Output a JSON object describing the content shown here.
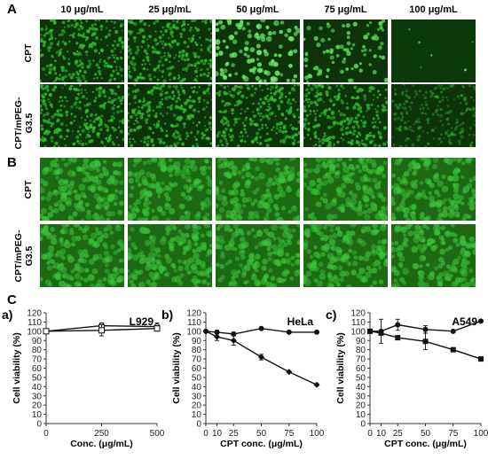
{
  "panels": {
    "A": "A",
    "B": "B",
    "C": "C"
  },
  "columns": [
    "10 μg/mL",
    "25 μg/mL",
    "50 μg/mL",
    "75 μg/mL",
    "100 μg/mL"
  ],
  "rows": {
    "cpt": "CPT",
    "cpt_mpeg": "CPT/mPEG-\nG3.5"
  },
  "micrograph_color": "#2fbf2f",
  "chart_data": [
    {
      "type": "line",
      "panel": "a)",
      "title": "L929",
      "xlabel": "Conc. (μg/mL)",
      "ylabel": "Cell viability (%)",
      "x": [
        0,
        250,
        500
      ],
      "xticks": [
        0,
        250,
        500
      ],
      "yticks": [
        0,
        10,
        20,
        30,
        40,
        50,
        60,
        70,
        80,
        90,
        100,
        110,
        120
      ],
      "xlim": [
        0,
        500
      ],
      "ylim": [
        0,
        120
      ],
      "series": [
        {
          "marker": "open-circle",
          "values": [
            100,
            106,
            105
          ],
          "errors": [
            2,
            3,
            4
          ]
        },
        {
          "marker": "open-square",
          "values": [
            100,
            101,
            103
          ],
          "errors": [
            2,
            6,
            3
          ]
        }
      ]
    },
    {
      "type": "line",
      "panel": "b)",
      "title": "HeLa",
      "xlabel": "CPT conc. (μg/mL)",
      "ylabel": "Cell viability (%)",
      "x": [
        0,
        10,
        25,
        50,
        75,
        100
      ],
      "xticks": [
        0,
        10,
        25,
        50,
        75,
        100
      ],
      "yticks": [
        0,
        10,
        20,
        30,
        40,
        50,
        60,
        70,
        80,
        90,
        100,
        110,
        120
      ],
      "xlim": [
        0,
        100
      ],
      "ylim": [
        0,
        120
      ],
      "series": [
        {
          "marker": "filled-circle",
          "values": [
            100,
            99,
            97,
            103,
            99,
            99
          ],
          "errors": [
            1,
            2,
            2,
            1,
            1,
            1
          ]
        },
        {
          "marker": "filled-diamond",
          "values": [
            100,
            94,
            90,
            72,
            56,
            42
          ],
          "errors": [
            1,
            4,
            5,
            3,
            1,
            1
          ]
        }
      ]
    },
    {
      "type": "line",
      "panel": "c)",
      "title": "A549",
      "xlabel": "CPT conc. (μg/mL)",
      "ylabel": "Cell viability (%)",
      "x": [
        0,
        10,
        25,
        50,
        75,
        100
      ],
      "xticks": [
        0,
        10,
        25,
        50,
        75,
        100
      ],
      "yticks": [
        0,
        10,
        20,
        30,
        40,
        50,
        60,
        70,
        80,
        90,
        100,
        110,
        120
      ],
      "xlim": [
        0,
        100
      ],
      "ylim": [
        0,
        120
      ],
      "series": [
        {
          "marker": "filled-circle",
          "values": [
            100,
            100,
            107,
            102,
            100,
            111
          ],
          "errors": [
            1,
            13,
            6,
            4,
            1,
            1
          ]
        },
        {
          "marker": "filled-square",
          "values": [
            100,
            98,
            93,
            89,
            80,
            70
          ],
          "errors": [
            1,
            2,
            2,
            9,
            2,
            1
          ]
        }
      ]
    }
  ]
}
